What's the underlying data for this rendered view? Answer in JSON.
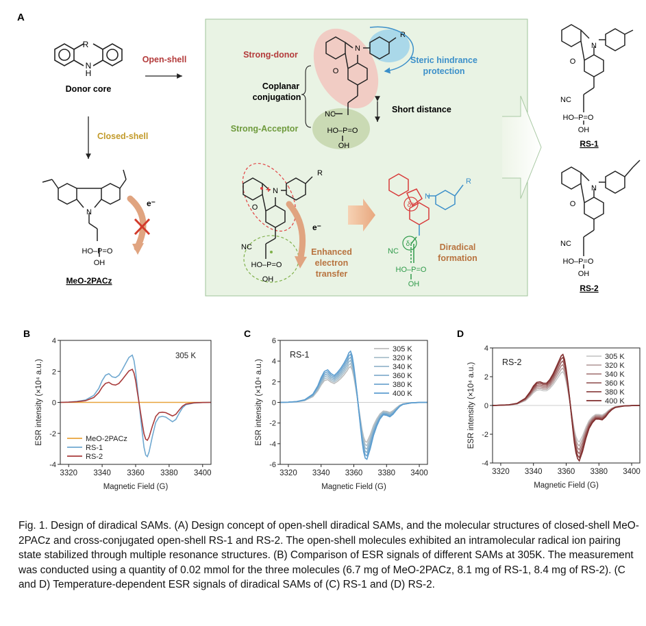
{
  "panel_a": {
    "label": "A",
    "donor_core": {
      "label": "Donor core",
      "r": "R",
      "h": "H",
      "n": "N"
    },
    "open_shell": "Open-shell",
    "closed_shell": "Closed-shell",
    "meo": {
      "name": "MeO-2PACz",
      "n": "N",
      "hopo": "HO–P=O",
      "oh": "OH",
      "e": "e⁻"
    },
    "center": {
      "strong_donor": "Strong-donor",
      "steric_1": "Steric hindrance",
      "steric_2": "protection",
      "coplanar_1": "Coplanar",
      "coplanar_2": "conjugation",
      "short_distance": "Short distance",
      "strong_acceptor": "Strong-Acceptor",
      "r": "R",
      "n": "N",
      "o": "O",
      "nc": "NC",
      "hopo": "HO–P=O",
      "oh": "OH",
      "e": "e⁻",
      "enhanced_1": "Enhanced",
      "enhanced_2": "electron",
      "enhanced_3": "transfer",
      "diradical_1": "Diradical",
      "diradical_2": "formation",
      "delta_plus": "δ⁺",
      "delta_minus": "δ⁻"
    },
    "rs1": {
      "name": "RS-1",
      "n": "N",
      "o": "O",
      "nc": "NC",
      "hopo": "HO–P=O",
      "oh": "OH"
    },
    "rs2": {
      "name": "RS-2",
      "n": "N",
      "o": "O",
      "nc": "NC",
      "hopo": "HO–P=O",
      "oh": "OH"
    }
  },
  "chart_data": [
    {
      "panel": "B",
      "type": "line",
      "annotation": "305 K",
      "xlabel": "Magnetic Field (G)",
      "ylabel": "ESR intensity (×10⁴ a.u.)",
      "xlim": [
        3315,
        3405
      ],
      "ylim": [
        -4,
        4
      ],
      "xticks": [
        3320,
        3340,
        3360,
        3380,
        3400
      ],
      "yticks": [
        -4,
        -2,
        0,
        2,
        4
      ],
      "legend_position": "bottom-left",
      "series": [
        {
          "name": "MeO-2PACz",
          "color": "#e8a33a",
          "scale": 0.0
        },
        {
          "name": "RS-1",
          "color": "#6fa8d0",
          "scale": 1.0
        },
        {
          "name": "RS-2",
          "color": "#a83a3a",
          "scale": 0.7
        }
      ],
      "base_x": [
        3315,
        3320,
        3325,
        3330,
        3335,
        3338,
        3340,
        3342,
        3344,
        3346,
        3348,
        3350,
        3352,
        3354,
        3356,
        3358,
        3359,
        3360,
        3361,
        3362,
        3363,
        3364,
        3365,
        3366,
        3367,
        3368,
        3370,
        3372,
        3374,
        3376,
        3378,
        3380,
        3382,
        3384,
        3386,
        3388,
        3390,
        3395,
        3400,
        3405
      ],
      "base_y": [
        0,
        0.02,
        0.06,
        0.15,
        0.45,
        0.9,
        1.4,
        1.75,
        1.85,
        1.65,
        1.6,
        1.75,
        2.1,
        2.5,
        2.9,
        3.05,
        2.7,
        2.0,
        1.0,
        0.0,
        -1.0,
        -2.0,
        -2.9,
        -3.4,
        -3.5,
        -3.2,
        -2.2,
        -1.3,
        -0.95,
        -0.9,
        -0.95,
        -1.1,
        -1.25,
        -1.1,
        -0.7,
        -0.35,
        -0.15,
        -0.04,
        -0.01,
        0
      ]
    },
    {
      "panel": "C",
      "type": "line",
      "title": "RS-1",
      "xlabel": "Magnetic Field (G)",
      "ylabel": "ESR intensity (×10⁴ a.u.)",
      "xlim": [
        3315,
        3405
      ],
      "ylim": [
        -6,
        6
      ],
      "xticks": [
        3320,
        3340,
        3360,
        3380,
        3400
      ],
      "yticks": [
        -6,
        -4,
        -2,
        0,
        2,
        4,
        6
      ],
      "legend_position": "top-right",
      "series": [
        {
          "name": "305 K",
          "color": "#bdbdbd",
          "scale": 0.7
        },
        {
          "name": "320 K",
          "color": "#a9bfcc",
          "scale": 0.76
        },
        {
          "name": "340 K",
          "color": "#96b6cb",
          "scale": 0.82
        },
        {
          "name": "360 K",
          "color": "#82aecd",
          "scale": 0.88
        },
        {
          "name": "380 K",
          "color": "#6fa5cf",
          "scale": 0.94
        },
        {
          "name": "400 K",
          "color": "#5b9dd0",
          "scale": 1.0
        }
      ],
      "base_x": [
        3315,
        3320,
        3325,
        3330,
        3335,
        3338,
        3340,
        3342,
        3344,
        3346,
        3348,
        3350,
        3352,
        3354,
        3356,
        3357,
        3358,
        3359,
        3360,
        3361,
        3362,
        3363,
        3364,
        3365,
        3366,
        3367,
        3368,
        3370,
        3372,
        3374,
        3376,
        3378,
        3380,
        3382,
        3384,
        3386,
        3388,
        3390,
        3395,
        3400,
        3405
      ],
      "base_y": [
        0,
        0.02,
        0.08,
        0.25,
        0.8,
        1.6,
        2.4,
        3.0,
        3.15,
        2.8,
        2.6,
        2.9,
        3.3,
        3.8,
        4.4,
        4.8,
        4.95,
        4.5,
        3.5,
        2.2,
        0.8,
        -0.8,
        -2.3,
        -3.7,
        -4.8,
        -5.4,
        -5.5,
        -4.5,
        -3.2,
        -2.3,
        -1.6,
        -1.2,
        -1.25,
        -1.4,
        -1.15,
        -0.75,
        -0.4,
        -0.2,
        -0.05,
        -0.01,
        0
      ]
    },
    {
      "panel": "D",
      "type": "line",
      "title": "RS-2",
      "xlabel": "Magnetic Field (G)",
      "ylabel": "ESR intensity (×10⁴ a.u.)",
      "xlim": [
        3315,
        3405
      ],
      "ylim": [
        -4,
        4
      ],
      "xticks": [
        3320,
        3340,
        3360,
        3380,
        3400
      ],
      "yticks": [
        -4,
        -2,
        0,
        2,
        4
      ],
      "legend_position": "top-right",
      "series": [
        {
          "name": "305 K",
          "color": "#c8c8c8",
          "scale": 0.66
        },
        {
          "name": "320 K",
          "color": "#b9a3a3",
          "scale": 0.73
        },
        {
          "name": "340 K",
          "color": "#ab8080",
          "scale": 0.8
        },
        {
          "name": "360 K",
          "color": "#9c6060",
          "scale": 0.87
        },
        {
          "name": "380 K",
          "color": "#8e4444",
          "scale": 0.94
        },
        {
          "name": "400 K",
          "color": "#7f2c2c",
          "scale": 1.0
        }
      ],
      "base_x": [
        3315,
        3320,
        3325,
        3330,
        3335,
        3338,
        3340,
        3342,
        3344,
        3346,
        3348,
        3350,
        3352,
        3354,
        3356,
        3357,
        3358,
        3359,
        3360,
        3361,
        3362,
        3363,
        3364,
        3365,
        3366,
        3367,
        3368,
        3370,
        3372,
        3374,
        3376,
        3378,
        3380,
        3382,
        3384,
        3386,
        3388,
        3390,
        3395,
        3400,
        3405
      ],
      "base_y": [
        0,
        0.02,
        0.05,
        0.15,
        0.5,
        0.95,
        1.35,
        1.6,
        1.65,
        1.55,
        1.55,
        1.8,
        2.2,
        2.7,
        3.2,
        3.45,
        3.55,
        3.2,
        2.5,
        1.6,
        0.6,
        -0.5,
        -1.6,
        -2.6,
        -3.3,
        -3.7,
        -3.85,
        -3.2,
        -2.3,
        -1.6,
        -1.2,
        -0.95,
        -0.95,
        -1.0,
        -0.8,
        -0.5,
        -0.28,
        -0.14,
        -0.04,
        -0.01,
        0
      ]
    }
  ],
  "caption": {
    "title": "Fig. 1. Design of diradical SAMs.",
    "body": " (A) Design concept of open-shell diradical SAMs, and the molecular structures of closed-shell MeO-2PACz and cross-conjugated open-shell RS-1 and RS-2. The open-shell molecules exhibited an intramolecular radical ion pairing state stabilized through multiple resonance structures. (B) Comparison of ESR signals of different SAMs at 305K. The measurement was conducted using a quantity of 0.02 mmol for the three molecules (6.7 mg of MeO-2PACz, 8.1 mg of RS-1, 8.4 mg of RS-2). (C and D) Temperature-dependent ESR signals of diradical SAMs of (C) RS-1 and (D) RS-2."
  }
}
